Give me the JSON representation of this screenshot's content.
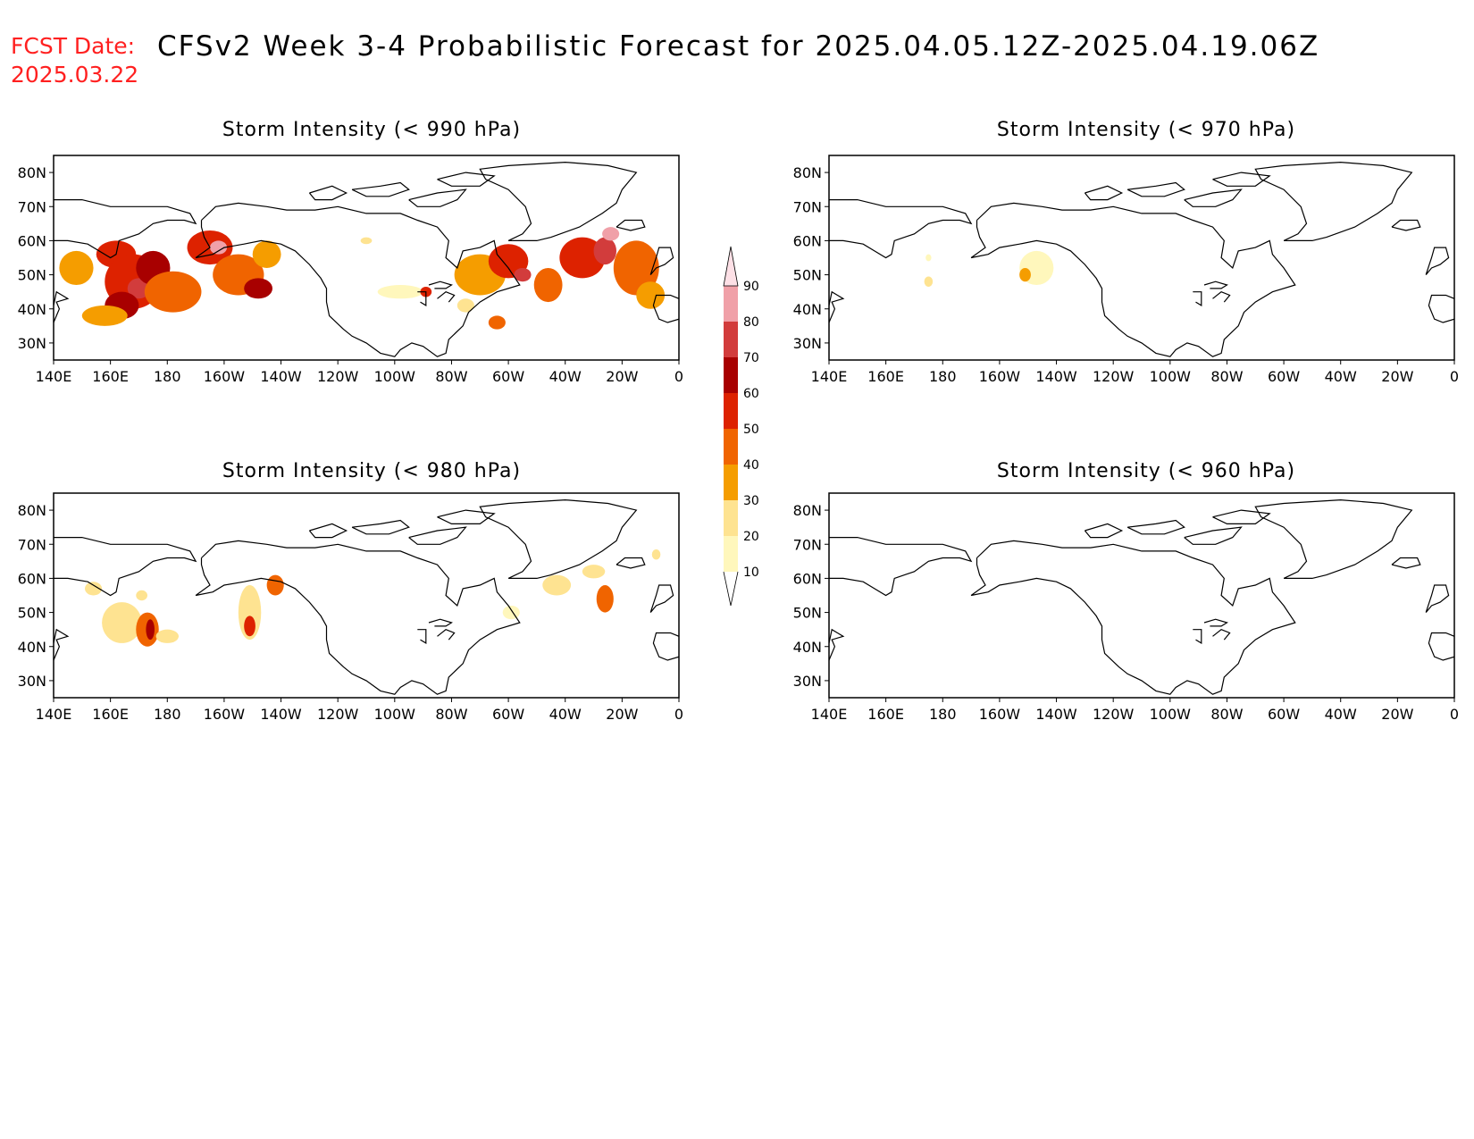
{
  "header": {
    "label": "FCST Date:",
    "title": "CFSv2 Week 3-4 Probabilistic Forecast for 2025.04.05.12Z-2025.04.19.06Z",
    "forecast_date": "2025.03.22"
  },
  "lon_labels": [
    "140E",
    "160E",
    "180",
    "160W",
    "140W",
    "120W",
    "100W",
    "80W",
    "60W",
    "40W",
    "20W",
    "0"
  ],
  "lat_labels": [
    "80N",
    "70N",
    "60N",
    "50N",
    "40N",
    "30N"
  ],
  "panels": [
    {
      "title": "Storm Intensity (< 990 hPa)",
      "blobs": [
        {
          "lon": 148,
          "lat": 52,
          "rlon": 6,
          "rlat": 5,
          "v": 30
        },
        {
          "lon": 162,
          "lat": 56,
          "rlon": 7,
          "rlat": 4,
          "v": 50
        },
        {
          "lon": 168,
          "lat": 48,
          "rlon": 10,
          "rlat": 8,
          "v": 50
        },
        {
          "lon": 170,
          "lat": 46,
          "rlon": 4,
          "rlat": 3,
          "v": 70
        },
        {
          "lon": 175,
          "lat": 52,
          "rlon": 6,
          "rlat": 5,
          "v": 60
        },
        {
          "lon": 182,
          "lat": 45,
          "rlon": 10,
          "rlat": 6,
          "v": 40
        },
        {
          "lon": 164,
          "lat": 41,
          "rlon": 6,
          "rlat": 4,
          "v": 60
        },
        {
          "lon": 158,
          "lat": 38,
          "rlon": 8,
          "rlat": 3,
          "v": 30
        },
        {
          "lon": 195,
          "lat": 58,
          "rlon": 8,
          "rlat": 5,
          "v": 50
        },
        {
          "lon": 198,
          "lat": 58,
          "rlon": 3,
          "rlat": 2,
          "v": 80
        },
        {
          "lon": 205,
          "lat": 50,
          "rlon": 9,
          "rlat": 6,
          "v": 40
        },
        {
          "lon": 212,
          "lat": 46,
          "rlon": 5,
          "rlat": 3,
          "v": 60
        },
        {
          "lon": 215,
          "lat": 56,
          "rlon": 5,
          "rlat": 4,
          "v": 30
        },
        {
          "lon": 250,
          "lat": 60,
          "rlon": 2,
          "rlat": 1,
          "v": 20
        },
        {
          "lon": 262,
          "lat": 45,
          "rlon": 8,
          "rlat": 2,
          "v": 10
        },
        {
          "lon": 271,
          "lat": 45,
          "rlon": 2,
          "rlat": 1.5,
          "v": 50
        },
        {
          "lon": 290,
          "lat": 50,
          "rlon": 9,
          "rlat": 6,
          "v": 30
        },
        {
          "lon": 300,
          "lat": 54,
          "rlon": 7,
          "rlat": 5,
          "v": 50
        },
        {
          "lon": 305,
          "lat": 50,
          "rlon": 3,
          "rlat": 2,
          "v": 70
        },
        {
          "lon": 314,
          "lat": 47,
          "rlon": 5,
          "rlat": 5,
          "v": 40
        },
        {
          "lon": 326,
          "lat": 55,
          "rlon": 8,
          "rlat": 6,
          "v": 50
        },
        {
          "lon": 334,
          "lat": 57,
          "rlon": 4,
          "rlat": 4,
          "v": 70
        },
        {
          "lon": 336,
          "lat": 62,
          "rlon": 3,
          "rlat": 2,
          "v": 80
        },
        {
          "lon": 345,
          "lat": 52,
          "rlon": 8,
          "rlat": 8,
          "v": 40
        },
        {
          "lon": 350,
          "lat": 44,
          "rlon": 5,
          "rlat": 4,
          "v": 30
        },
        {
          "lon": 296,
          "lat": 36,
          "rlon": 3,
          "rlat": 2,
          "v": 40
        },
        {
          "lon": 285,
          "lat": 41,
          "rlon": 3,
          "rlat": 2,
          "v": 20
        }
      ]
    },
    {
      "title": "Storm Intensity (< 980 hPa)",
      "blobs": [
        {
          "lon": 154,
          "lat": 57,
          "rlon": 3,
          "rlat": 2,
          "v": 20
        },
        {
          "lon": 164,
          "lat": 47,
          "rlon": 7,
          "rlat": 6,
          "v": 20
        },
        {
          "lon": 173,
          "lat": 45,
          "rlon": 4,
          "rlat": 5,
          "v": 40
        },
        {
          "lon": 174,
          "lat": 45,
          "rlon": 1.5,
          "rlat": 3,
          "v": 60
        },
        {
          "lon": 180,
          "lat": 43,
          "rlon": 4,
          "rlat": 2,
          "v": 20
        },
        {
          "lon": 171,
          "lat": 55,
          "rlon": 2,
          "rlat": 1.5,
          "v": 20
        },
        {
          "lon": 209,
          "lat": 50,
          "rlon": 4,
          "rlat": 8,
          "v": 20
        },
        {
          "lon": 209,
          "lat": 46,
          "rlon": 2,
          "rlat": 3,
          "v": 50
        },
        {
          "lon": 218,
          "lat": 58,
          "rlon": 3,
          "rlat": 3,
          "v": 40
        },
        {
          "lon": 317,
          "lat": 58,
          "rlon": 5,
          "rlat": 3,
          "v": 20
        },
        {
          "lon": 330,
          "lat": 62,
          "rlon": 4,
          "rlat": 2,
          "v": 20
        },
        {
          "lon": 334,
          "lat": 54,
          "rlon": 3,
          "rlat": 4,
          "v": 40
        },
        {
          "lon": 352,
          "lat": 67,
          "rlon": 1.5,
          "rlat": 1.5,
          "v": 20
        },
        {
          "lon": 301,
          "lat": 50,
          "rlon": 3,
          "rlat": 2,
          "v": 10
        }
      ]
    },
    {
      "title": "Storm Intensity (< 970 hPa)",
      "blobs": [
        {
          "lon": 213,
          "lat": 52,
          "rlon": 6,
          "rlat": 5,
          "v": 10
        },
        {
          "lon": 209,
          "lat": 50,
          "rlon": 2,
          "rlat": 2,
          "v": 30
        },
        {
          "lon": 175,
          "lat": 48,
          "rlon": 1.5,
          "rlat": 1.5,
          "v": 20
        },
        {
          "lon": 175,
          "lat": 55,
          "rlon": 1,
          "rlat": 1,
          "v": 10
        }
      ]
    },
    {
      "title": "Storm Intensity (< 960 hPa)",
      "blobs": []
    }
  ],
  "colorbar": {
    "levels": [
      "10",
      "20",
      "30",
      "40",
      "50",
      "60",
      "70",
      "80",
      "90"
    ],
    "colors": [
      "#fff7bc",
      "#fee391",
      "#f59d00",
      "#f06400",
      "#dd2200",
      "#a80000",
      "#d23c3c",
      "#f0a0a8",
      "#fde0e6"
    ]
  }
}
